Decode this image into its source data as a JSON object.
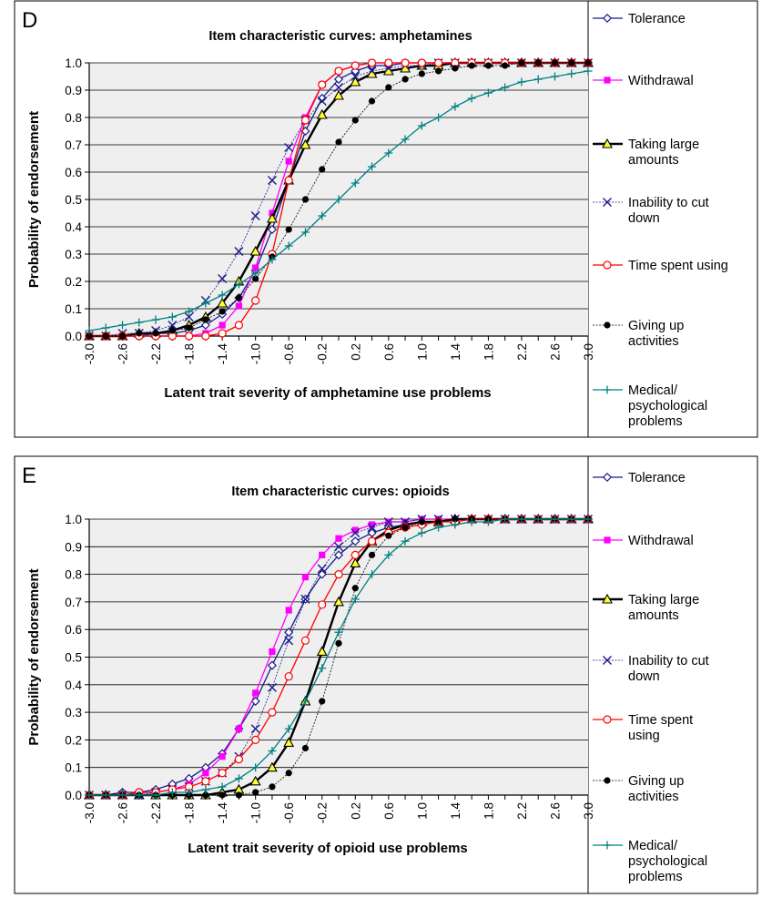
{
  "chart_data": [
    {
      "type": "line",
      "panel_label": "D",
      "title": "Item characteristic curves: amphetamines",
      "xlabel": "Latent trait severity of amphetamine use problems",
      "ylabel": "Probability of endorsement",
      "xlim": [
        -3.0,
        3.0
      ],
      "ylim": [
        0.0,
        1.0
      ],
      "grid": "horizontal",
      "plot_background": "#efefef",
      "legend_position": "right",
      "x_ticks": [
        "-3.0",
        "-2.6",
        "-2.2",
        "-1.8",
        "-1.4",
        "-1.0",
        "-0.6",
        "-0.2",
        "0.2",
        "0.6",
        "1.0",
        "1.4",
        "1.8",
        "2.2",
        "2.6",
        "3.0"
      ],
      "y_ticks": [
        "0.0",
        "0.1",
        "0.2",
        "0.3",
        "0.4",
        "0.5",
        "0.6",
        "0.7",
        "0.8",
        "0.9",
        "1.0"
      ],
      "x": [
        -3.0,
        -2.8,
        -2.6,
        -2.4,
        -2.2,
        -2.0,
        -1.8,
        -1.6,
        -1.4,
        -1.2,
        -1.0,
        -0.8,
        -0.6,
        -0.4,
        -0.2,
        0.0,
        0.2,
        0.4,
        0.6,
        0.8,
        1.0,
        1.2,
        1.4,
        1.6,
        1.8,
        2.0,
        2.2,
        2.4,
        2.6,
        2.8,
        3.0
      ],
      "series": [
        {
          "name": "Tolerance",
          "legend_lines": [
            "Tolerance"
          ],
          "color": "#1a1a8c",
          "marker": "diamond-open",
          "line_width": 1.3,
          "values": [
            0.0,
            0.0,
            0.0,
            0.0,
            0.01,
            0.01,
            0.02,
            0.04,
            0.08,
            0.14,
            0.24,
            0.39,
            0.57,
            0.75,
            0.87,
            0.94,
            0.97,
            0.99,
            0.99,
            1.0,
            1.0,
            1.0,
            1.0,
            1.0,
            1.0,
            1.0,
            1.0,
            1.0,
            1.0,
            1.0,
            1.0
          ]
        },
        {
          "name": "Withdrawal",
          "legend_lines": [
            "Withdrawal"
          ],
          "color": "#ff00ff",
          "marker": "square-filled",
          "line_width": 1.3,
          "values": [
            0.0,
            0.0,
            0.0,
            0.0,
            0.0,
            0.0,
            0.0,
            0.01,
            0.04,
            0.11,
            0.25,
            0.45,
            0.64,
            0.8,
            0.92,
            0.97,
            0.99,
            1.0,
            1.0,
            1.0,
            1.0,
            1.0,
            1.0,
            1.0,
            1.0,
            1.0,
            1.0,
            1.0,
            1.0,
            1.0,
            1.0
          ]
        },
        {
          "name": "Taking large amounts",
          "legend_lines": [
            "Taking large",
            "amounts"
          ],
          "color": "#000000",
          "marker": "triangle-yellow",
          "line_width": 2.4,
          "values": [
            0.0,
            0.0,
            0.0,
            0.01,
            0.01,
            0.02,
            0.04,
            0.07,
            0.12,
            0.2,
            0.31,
            0.43,
            0.57,
            0.7,
            0.81,
            0.88,
            0.93,
            0.96,
            0.97,
            0.98,
            0.99,
            0.99,
            1.0,
            1.0,
            1.0,
            1.0,
            1.0,
            1.0,
            1.0,
            1.0,
            1.0
          ]
        },
        {
          "name": "Inability to cut down",
          "legend_lines": [
            "Inability to cut",
            "down"
          ],
          "color": "#1a1a8c",
          "marker": "x",
          "line_width": 0.8,
          "dashed": true,
          "values": [
            0.0,
            0.0,
            0.01,
            0.01,
            0.02,
            0.04,
            0.07,
            0.13,
            0.21,
            0.31,
            0.44,
            0.57,
            0.69,
            0.79,
            0.86,
            0.91,
            0.95,
            0.97,
            0.98,
            0.99,
            0.99,
            1.0,
            1.0,
            1.0,
            1.0,
            1.0,
            1.0,
            1.0,
            1.0,
            1.0,
            1.0
          ]
        },
        {
          "name": "Time spent using",
          "legend_lines": [
            "Time spent using"
          ],
          "color": "#ff0000",
          "marker": "circle-open",
          "line_width": 1.3,
          "values": [
            0.0,
            0.0,
            0.0,
            0.0,
            0.0,
            0.0,
            0.0,
            0.0,
            0.01,
            0.04,
            0.13,
            0.3,
            0.57,
            0.79,
            0.92,
            0.97,
            0.99,
            1.0,
            1.0,
            1.0,
            1.0,
            1.0,
            1.0,
            1.0,
            1.0,
            1.0,
            1.0,
            1.0,
            1.0,
            1.0,
            1.0
          ]
        },
        {
          "name": "Giving up activities",
          "legend_lines": [
            "Giving up",
            "activities"
          ],
          "color": "#000000",
          "marker": "circle-filled",
          "line_width": 0.8,
          "dashed": true,
          "values": [
            0.0,
            0.0,
            0.0,
            0.01,
            0.01,
            0.02,
            0.03,
            0.06,
            0.09,
            0.14,
            0.21,
            0.29,
            0.39,
            0.5,
            0.61,
            0.71,
            0.79,
            0.86,
            0.91,
            0.94,
            0.96,
            0.97,
            0.98,
            0.99,
            0.99,
            0.99,
            1.0,
            1.0,
            1.0,
            1.0,
            1.0
          ]
        },
        {
          "name": "Medical/psychological problems",
          "legend_lines": [
            "Medical/",
            "psychological",
            "problems"
          ],
          "color": "#008080",
          "marker": "plus",
          "line_width": 1.3,
          "values": [
            0.02,
            0.03,
            0.04,
            0.05,
            0.06,
            0.07,
            0.09,
            0.12,
            0.15,
            0.19,
            0.23,
            0.28,
            0.33,
            0.38,
            0.44,
            0.5,
            0.56,
            0.62,
            0.67,
            0.72,
            0.77,
            0.8,
            0.84,
            0.87,
            0.89,
            0.91,
            0.93,
            0.94,
            0.95,
            0.96,
            0.97
          ]
        }
      ]
    },
    {
      "type": "line",
      "panel_label": "E",
      "title": "Item characteristic curves: opioids",
      "xlabel": "Latent trait severity of opioid use problems",
      "ylabel": "Probability of endorsement",
      "xlim": [
        -3.0,
        3.0
      ],
      "ylim": [
        0.0,
        1.0
      ],
      "grid": "horizontal",
      "plot_background": "#efefef",
      "legend_position": "right",
      "x_ticks": [
        "-3.0",
        "-2.6",
        "-2.2",
        "-1.8",
        "-1.4",
        "-1.0",
        "-0.6",
        "-0.2",
        "0.2",
        "0.6",
        "1.0",
        "1.4",
        "1.8",
        "2.2",
        "2.6",
        "3.0"
      ],
      "y_ticks": [
        "0.0",
        "0.1",
        "0.2",
        "0.3",
        "0.4",
        "0.5",
        "0.6",
        "0.7",
        "0.8",
        "0.9",
        "1.0"
      ],
      "x": [
        -3.0,
        -2.8,
        -2.6,
        -2.4,
        -2.2,
        -2.0,
        -1.8,
        -1.6,
        -1.4,
        -1.2,
        -1.0,
        -0.8,
        -0.6,
        -0.4,
        -0.2,
        0.0,
        0.2,
        0.4,
        0.6,
        0.8,
        1.0,
        1.2,
        1.4,
        1.6,
        1.8,
        2.0,
        2.2,
        2.4,
        2.6,
        2.8,
        3.0
      ],
      "series": [
        {
          "name": "Tolerance",
          "legend_lines": [
            "Tolerance"
          ],
          "color": "#1a1a8c",
          "marker": "diamond-open",
          "line_width": 1.3,
          "values": [
            0.0,
            0.0,
            0.01,
            0.01,
            0.02,
            0.04,
            0.06,
            0.1,
            0.15,
            0.24,
            0.34,
            0.47,
            0.59,
            0.71,
            0.8,
            0.87,
            0.92,
            0.95,
            0.97,
            0.98,
            0.99,
            0.99,
            1.0,
            1.0,
            1.0,
            1.0,
            1.0,
            1.0,
            1.0,
            1.0,
            1.0
          ]
        },
        {
          "name": "Withdrawal",
          "legend_lines": [
            "Withdrawal"
          ],
          "color": "#ff00ff",
          "marker": "square-filled",
          "line_width": 1.3,
          "values": [
            0.0,
            0.0,
            0.0,
            0.01,
            0.01,
            0.02,
            0.04,
            0.08,
            0.14,
            0.24,
            0.37,
            0.52,
            0.67,
            0.79,
            0.87,
            0.93,
            0.96,
            0.98,
            0.99,
            0.99,
            1.0,
            1.0,
            1.0,
            1.0,
            1.0,
            1.0,
            1.0,
            1.0,
            1.0,
            1.0,
            1.0
          ]
        },
        {
          "name": "Taking large amounts",
          "legend_lines": [
            "Taking large",
            "amounts"
          ],
          "color": "#000000",
          "marker": "triangle-yellow",
          "line_width": 2.4,
          "values": [
            0.0,
            0.0,
            0.0,
            0.0,
            0.0,
            0.0,
            0.0,
            0.0,
            0.01,
            0.02,
            0.05,
            0.1,
            0.19,
            0.34,
            0.52,
            0.7,
            0.84,
            0.92,
            0.96,
            0.98,
            0.99,
            0.99,
            1.0,
            1.0,
            1.0,
            1.0,
            1.0,
            1.0,
            1.0,
            1.0,
            1.0
          ]
        },
        {
          "name": "Inability to cut down",
          "legend_lines": [
            "Inability to cut",
            "down"
          ],
          "color": "#1a1a8c",
          "marker": "x",
          "line_width": 0.8,
          "dashed": true,
          "values": [
            0.0,
            0.0,
            0.0,
            0.0,
            0.01,
            0.02,
            0.03,
            0.05,
            0.08,
            0.14,
            0.24,
            0.39,
            0.56,
            0.71,
            0.82,
            0.9,
            0.95,
            0.97,
            0.99,
            0.99,
            1.0,
            1.0,
            1.0,
            1.0,
            1.0,
            1.0,
            1.0,
            1.0,
            1.0,
            1.0,
            1.0
          ]
        },
        {
          "name": "Time spent using",
          "legend_lines": [
            "Time spent",
            "using"
          ],
          "color": "#ff0000",
          "marker": "circle-open",
          "line_width": 1.3,
          "values": [
            0.0,
            0.0,
            0.0,
            0.01,
            0.01,
            0.02,
            0.03,
            0.05,
            0.08,
            0.13,
            0.2,
            0.3,
            0.43,
            0.56,
            0.69,
            0.8,
            0.87,
            0.92,
            0.95,
            0.97,
            0.98,
            0.99,
            0.99,
            1.0,
            1.0,
            1.0,
            1.0,
            1.0,
            1.0,
            1.0,
            1.0
          ]
        },
        {
          "name": "Giving up activities",
          "legend_lines": [
            "Giving up",
            "activities"
          ],
          "color": "#000000",
          "marker": "circle-filled",
          "line_width": 0.8,
          "dashed": true,
          "values": [
            0.0,
            0.0,
            0.0,
            0.0,
            0.0,
            0.0,
            0.0,
            0.0,
            0.0,
            0.0,
            0.01,
            0.03,
            0.08,
            0.17,
            0.34,
            0.55,
            0.75,
            0.87,
            0.94,
            0.97,
            0.99,
            0.99,
            1.0,
            1.0,
            1.0,
            1.0,
            1.0,
            1.0,
            1.0,
            1.0,
            1.0
          ]
        },
        {
          "name": "Medical/psychological problems",
          "legend_lines": [
            "Medical/",
            "psychological",
            "problems"
          ],
          "color": "#008080",
          "marker": "plus",
          "line_width": 1.3,
          "values": [
            0.0,
            0.0,
            0.0,
            0.0,
            0.0,
            0.01,
            0.01,
            0.02,
            0.03,
            0.06,
            0.1,
            0.16,
            0.24,
            0.34,
            0.46,
            0.59,
            0.71,
            0.8,
            0.87,
            0.92,
            0.95,
            0.97,
            0.98,
            0.99,
            0.99,
            1.0,
            1.0,
            1.0,
            1.0,
            1.0,
            1.0
          ]
        }
      ]
    }
  ]
}
